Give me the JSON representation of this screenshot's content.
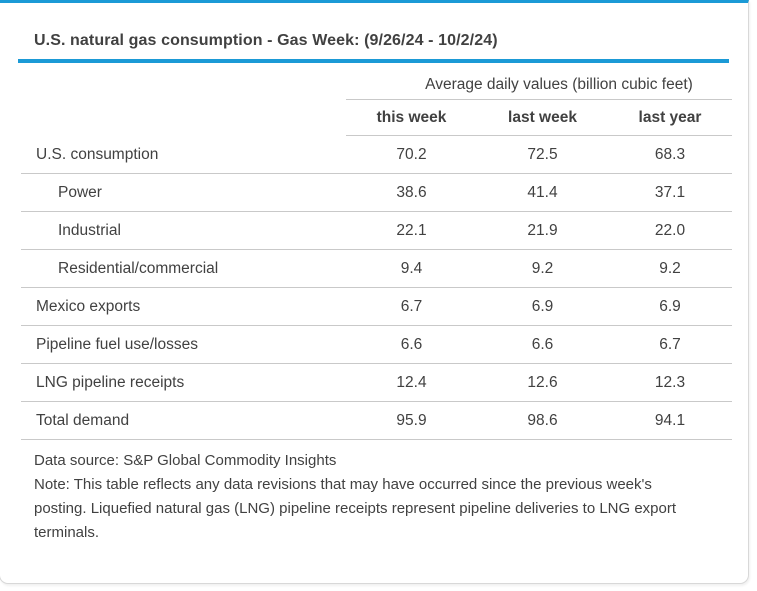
{
  "page": {
    "title": "U.S. natural gas consumption - Gas Week: (9/26/24 - 10/2/24)",
    "accent_color": "#1b9ad6"
  },
  "table": {
    "units_header": "Average daily values (billion cubic feet)",
    "columns": [
      "this week",
      "last week",
      "last year"
    ],
    "rows": [
      {
        "label": "U.S. consumption",
        "indent": false,
        "values": [
          "70.2",
          "72.5",
          "68.3"
        ]
      },
      {
        "label": "Power",
        "indent": true,
        "values": [
          "38.6",
          "41.4",
          "37.1"
        ]
      },
      {
        "label": "Industrial",
        "indent": true,
        "values": [
          "22.1",
          "21.9",
          "22.0"
        ]
      },
      {
        "label": "Residential/commercial",
        "indent": true,
        "values": [
          "9.4",
          "9.2",
          "9.2"
        ]
      },
      {
        "label": "Mexico exports",
        "indent": false,
        "values": [
          "6.7",
          "6.9",
          "6.9"
        ]
      },
      {
        "label": "Pipeline fuel use/losses",
        "indent": false,
        "values": [
          "6.6",
          "6.6",
          "6.7"
        ]
      },
      {
        "label": "LNG pipeline receipts",
        "indent": false,
        "values": [
          "12.4",
          "12.6",
          "12.3"
        ]
      },
      {
        "label": "Total demand",
        "indent": false,
        "values": [
          "95.9",
          "98.6",
          "94.1"
        ]
      }
    ]
  },
  "footer": {
    "source": "Data source: S&P Global Commodity Insights",
    "note": "Note: This table reflects any data revisions that may have occurred since the previous week's posting. Liquefied natural gas (LNG) pipeline receipts represent pipeline deliveries to LNG export terminals."
  },
  "chart_data": {
    "type": "table",
    "title": "U.S. natural gas consumption - Gas Week: (9/26/24 - 10/2/24)",
    "units": "Average daily values (billion cubic feet)",
    "columns": [
      "this week",
      "last week",
      "last year"
    ],
    "rows": [
      {
        "label": "U.S. consumption",
        "values": [
          70.2,
          72.5,
          68.3
        ]
      },
      {
        "label": "Power",
        "values": [
          38.6,
          41.4,
          37.1
        ]
      },
      {
        "label": "Industrial",
        "values": [
          22.1,
          21.9,
          22.0
        ]
      },
      {
        "label": "Residential/commercial",
        "values": [
          9.4,
          9.2,
          9.2
        ]
      },
      {
        "label": "Mexico exports",
        "values": [
          6.7,
          6.9,
          6.9
        ]
      },
      {
        "label": "Pipeline fuel use/losses",
        "values": [
          6.6,
          6.6,
          6.7
        ]
      },
      {
        "label": "LNG pipeline receipts",
        "values": [
          12.4,
          12.6,
          12.3
        ]
      },
      {
        "label": "Total demand",
        "values": [
          95.9,
          98.6,
          94.1
        ]
      }
    ]
  }
}
